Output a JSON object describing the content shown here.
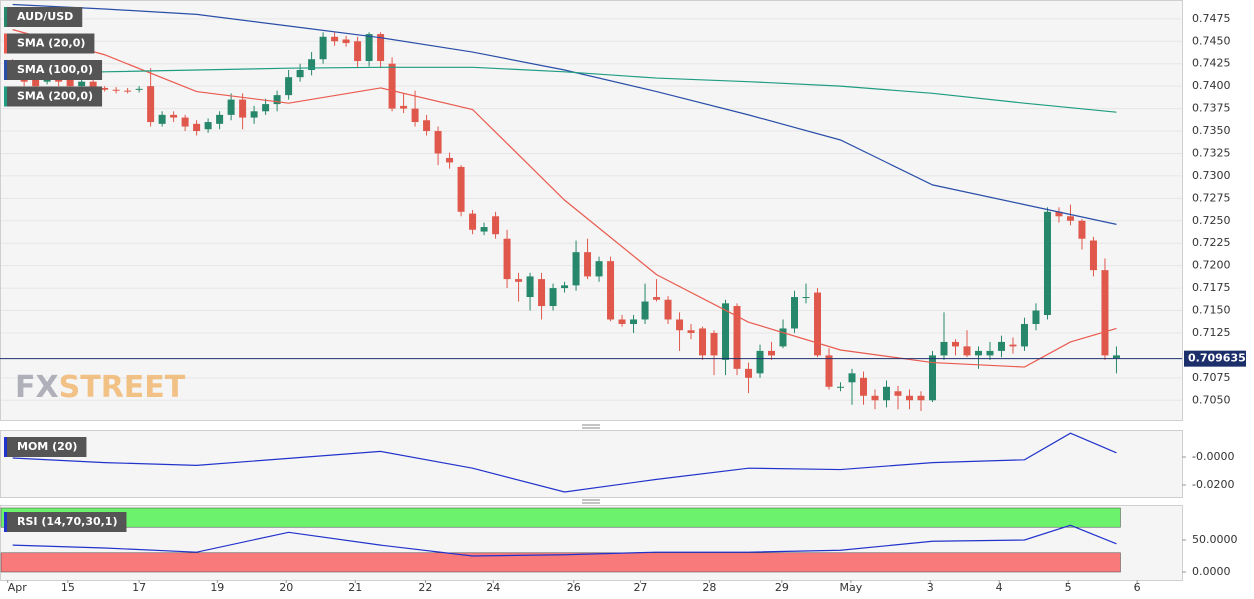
{
  "chart_data": [
    {
      "type": "candlestick",
      "title": "AUD/USD",
      "open": [
        0.7425,
        0.7418,
        0.741,
        0.7405,
        0.7412,
        0.7408,
        0.74,
        0.7405,
        0.7398,
        0.7396,
        0.7395,
        0.7396,
        0.74,
        0.7358,
        0.7368,
        0.7365,
        0.7358,
        0.7352,
        0.7358,
        0.7368,
        0.7385,
        0.7365,
        0.7372,
        0.738,
        0.739,
        0.741,
        0.7418,
        0.743,
        0.7455,
        0.7452,
        0.745,
        0.7428,
        0.7458,
        0.7425,
        0.7378,
        0.7375,
        0.7362,
        0.735,
        0.732,
        0.731,
        0.7258,
        0.7238,
        0.7255,
        0.723,
        0.7185,
        0.7165,
        0.7185,
        0.7155,
        0.7175,
        0.7178,
        0.7215,
        0.7188,
        0.7205,
        0.714,
        0.7135,
        0.714,
        0.7165,
        0.7162,
        0.714,
        0.7128,
        0.713,
        0.7125,
        0.7095,
        0.7155,
        0.7085,
        0.708,
        0.7105,
        0.711,
        0.713,
        0.7165,
        0.717,
        0.71,
        0.7065,
        0.707,
        0.7075,
        0.7055,
        0.705,
        0.706,
        0.7055,
        0.7055,
        0.705,
        0.71,
        0.7115,
        0.711,
        0.71,
        0.71,
        0.7105,
        0.7112,
        0.711,
        0.7135,
        0.7145,
        0.726,
        0.7255,
        0.725,
        0.7228,
        0.7195,
        0.7097
      ],
      "high": [
        0.743,
        0.7422,
        0.7415,
        0.7418,
        0.7416,
        0.7412,
        0.741,
        0.7412,
        0.74,
        0.7399,
        0.7398,
        0.74,
        0.742,
        0.7372,
        0.7372,
        0.7368,
        0.7362,
        0.7364,
        0.7372,
        0.7392,
        0.7392,
        0.7378,
        0.7386,
        0.7395,
        0.7418,
        0.7425,
        0.7438,
        0.746,
        0.746,
        0.7456,
        0.7455,
        0.746,
        0.746,
        0.7432,
        0.7392,
        0.7395,
        0.7368,
        0.7355,
        0.7326,
        0.7312,
        0.7262,
        0.7248,
        0.726,
        0.724,
        0.7192,
        0.7192,
        0.7192,
        0.718,
        0.7182,
        0.7228,
        0.723,
        0.721,
        0.721,
        0.7145,
        0.7145,
        0.718,
        0.7185,
        0.7166,
        0.7148,
        0.7135,
        0.7132,
        0.7128,
        0.7162,
        0.7158,
        0.7092,
        0.7112,
        0.7115,
        0.714,
        0.7172,
        0.718,
        0.7175,
        0.7108,
        0.707,
        0.7085,
        0.7082,
        0.7062,
        0.7072,
        0.7066,
        0.7062,
        0.706,
        0.7105,
        0.7148,
        0.7118,
        0.7128,
        0.711,
        0.7115,
        0.7122,
        0.712,
        0.7142,
        0.7158,
        0.7265,
        0.7265,
        0.7268,
        0.7252,
        0.7232,
        0.7208,
        0.711
      ],
      "low": [
        0.741,
        0.74,
        0.7398,
        0.7402,
        0.74,
        0.7396,
        0.7398,
        0.7394,
        0.7394,
        0.7392,
        0.7392,
        0.7393,
        0.7355,
        0.7355,
        0.736,
        0.735,
        0.7345,
        0.7348,
        0.7352,
        0.7362,
        0.7352,
        0.7358,
        0.7368,
        0.7372,
        0.7385,
        0.7405,
        0.7412,
        0.7425,
        0.7445,
        0.7444,
        0.742,
        0.7422,
        0.742,
        0.7372,
        0.737,
        0.7355,
        0.7345,
        0.7312,
        0.7308,
        0.7255,
        0.7235,
        0.7234,
        0.723,
        0.7175,
        0.716,
        0.715,
        0.714,
        0.715,
        0.717,
        0.7172,
        0.7185,
        0.7182,
        0.7138,
        0.7132,
        0.7125,
        0.7135,
        0.716,
        0.7135,
        0.7105,
        0.7118,
        0.7095,
        0.7078,
        0.7078,
        0.7078,
        0.7058,
        0.7075,
        0.7095,
        0.7108,
        0.7125,
        0.7158,
        0.7098,
        0.7062,
        0.706,
        0.7045,
        0.7045,
        0.704,
        0.7042,
        0.704,
        0.704,
        0.7038,
        0.7048,
        0.7095,
        0.71,
        0.7098,
        0.7085,
        0.7095,
        0.7098,
        0.7102,
        0.7105,
        0.7128,
        0.714,
        0.7248,
        0.7245,
        0.7218,
        0.7188,
        0.7095,
        0.708
      ],
      "close": [
        0.7415,
        0.7405,
        0.74,
        0.7412,
        0.7405,
        0.74,
        0.7405,
        0.7398,
        0.7396,
        0.7395,
        0.7394,
        0.7397,
        0.736,
        0.7368,
        0.7365,
        0.7355,
        0.735,
        0.736,
        0.7368,
        0.7385,
        0.7365,
        0.7372,
        0.738,
        0.739,
        0.741,
        0.7418,
        0.743,
        0.7455,
        0.745,
        0.7448,
        0.7428,
        0.7458,
        0.7428,
        0.7375,
        0.7375,
        0.736,
        0.735,
        0.7325,
        0.7315,
        0.726,
        0.724,
        0.7243,
        0.7235,
        0.7185,
        0.7182,
        0.7188,
        0.7155,
        0.7175,
        0.7178,
        0.7215,
        0.7188,
        0.7205,
        0.714,
        0.7135,
        0.714,
        0.716,
        0.7162,
        0.714,
        0.7128,
        0.7125,
        0.71,
        0.71,
        0.7158,
        0.7085,
        0.7075,
        0.7105,
        0.71,
        0.713,
        0.7165,
        0.7165,
        0.71,
        0.7065,
        0.7065,
        0.708,
        0.7055,
        0.705,
        0.7065,
        0.7055,
        0.705,
        0.705,
        0.71,
        0.7115,
        0.711,
        0.71,
        0.7105,
        0.7105,
        0.7115,
        0.711,
        0.7135,
        0.715,
        0.726,
        0.7255,
        0.725,
        0.723,
        0.7195,
        0.71,
        0.71
      ],
      "up_color": "#26876a",
      "down_color": "#e0584c",
      "last": 0.709635,
      "last_color": "#1c2f6b",
      "ylim": [
        0.7028,
        0.7496
      ],
      "yticks": [
        0.7475,
        {
          "value": 0.745,
          "label": "0.7450"
        },
        0.7425,
        {
          "value": 0.74,
          "label": "0.7400"
        },
        0.7375,
        {
          "value": 0.735,
          "label": "0.7350"
        },
        0.7325,
        {
          "value": 0.73,
          "label": "0.7300"
        },
        0.7275,
        {
          "value": 0.725,
          "label": "0.7250"
        },
        0.7225,
        {
          "value": 0.72,
          "label": "0.7200"
        },
        0.7175,
        {
          "value": 0.715,
          "label": "0.7150"
        },
        0.7125,
        0.7075,
        {
          "value": 0.705,
          "label": "0.7050"
        }
      ],
      "grid": true,
      "xlim": [
        -1.1,
        101.7
      ],
      "xticks": [
        {
          "value": -0.43,
          "label": "Apr"
        },
        {
          "value": 4.8,
          "label": "15"
        },
        {
          "value": 11,
          "label": "17"
        },
        {
          "value": 17.8,
          "label": "19"
        },
        {
          "value": 23.8,
          "label": "20"
        },
        {
          "value": 29.8,
          "label": "21"
        },
        {
          "value": 35.9,
          "label": "22"
        },
        {
          "value": 41.8,
          "label": "24"
        },
        {
          "value": 48.8,
          "label": "26"
        },
        {
          "value": 54.6,
          "label": "27"
        },
        {
          "value": 60.6,
          "label": "28"
        },
        {
          "value": 66.9,
          "label": "29"
        },
        {
          "value": 72.9,
          "label": "May"
        },
        {
          "value": 79.8,
          "label": "3"
        },
        {
          "value": 85.8,
          "label": "4"
        },
        {
          "value": 91.8,
          "label": "5"
        },
        {
          "value": 97.8,
          "label": "6"
        }
      ],
      "series": [
        {
          "name": "SMA (20,0)",
          "color": "#ea5a4e",
          "x": [
            0,
            8,
            16,
            24,
            32,
            40,
            48,
            56,
            64,
            72,
            80,
            88,
            92,
            96
          ],
          "values": [
            0.7463,
            0.7435,
            0.7394,
            0.7381,
            0.7398,
            0.7374,
            0.7273,
            0.719,
            0.7137,
            0.7106,
            0.7092,
            0.7087,
            0.7115,
            0.713
          ]
        },
        {
          "name": "SMA (100,0)",
          "color": "#2a4ea8",
          "x": [
            0,
            8,
            16,
            24,
            32,
            40,
            48,
            56,
            64,
            72,
            80,
            88,
            96
          ],
          "values": [
            0.7491,
            0.7486,
            0.748,
            0.7467,
            0.7454,
            0.7438,
            0.7418,
            0.7394,
            0.7368,
            0.734,
            0.729,
            0.7268,
            0.7246
          ]
        },
        {
          "name": "SMA (200,0)",
          "color": "#1f9c82",
          "x": [
            0,
            8,
            16,
            24,
            32,
            40,
            48,
            56,
            64,
            72,
            80,
            88,
            96
          ],
          "values": [
            0.7413,
            0.7416,
            0.7418,
            0.742,
            0.7421,
            0.7421,
            0.7416,
            0.7409,
            0.7405,
            0.74,
            0.7392,
            0.7381,
            0.7371
          ]
        }
      ]
    },
    {
      "type": "line",
      "series": [
        {
          "name": "MOM (20)",
          "color": "#2233cc",
          "x": [
            0,
            8,
            16,
            24,
            32,
            40,
            48,
            56,
            64,
            72,
            80,
            88,
            92,
            96
          ],
          "values": [
            -0.0007,
            -0.004,
            -0.006,
            -0.001,
            0.004,
            -0.008,
            -0.025,
            -0.016,
            -0.008,
            -0.009,
            -0.004,
            -0.002,
            0.017,
            0.003
          ]
        }
      ],
      "ylim": [
        -0.0286,
        0.0193
      ],
      "yticks": [
        {
          "value": 0,
          "label": "-0.0000"
        },
        {
          "value": -0.02,
          "label": "-0.0200"
        }
      ]
    },
    {
      "type": "line",
      "series": [
        {
          "name": "RSI (14,70,30,1)",
          "color": "#2233cc",
          "x": [
            0,
            8,
            16,
            24,
            32,
            40,
            48,
            56,
            64,
            72,
            80,
            88,
            92,
            96
          ],
          "values": [
            42,
            37.5,
            31,
            62,
            42,
            25,
            27,
            31,
            31,
            34,
            48,
            50,
            73,
            44
          ]
        }
      ],
      "bands": [
        {
          "from": 70,
          "to": 100,
          "color": "#6df26d"
        },
        {
          "from": 0,
          "to": 30,
          "color": "#f87a7a"
        }
      ],
      "ylim": [
        -12.5,
        104.7
      ],
      "yticks": [
        {
          "value": 50,
          "label": "50.0000"
        },
        {
          "value": 0,
          "label": "0.0000"
        }
      ]
    }
  ],
  "watermark": {
    "left": "FX",
    "right": "STREET"
  }
}
